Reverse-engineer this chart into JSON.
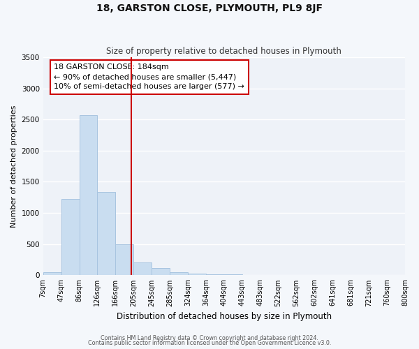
{
  "title": "18, GARSTON CLOSE, PLYMOUTH, PL9 8JF",
  "subtitle": "Size of property relative to detached houses in Plymouth",
  "xlabel": "Distribution of detached houses by size in Plymouth",
  "ylabel": "Number of detached properties",
  "bin_labels": [
    "7sqm",
    "47sqm",
    "86sqm",
    "126sqm",
    "166sqm",
    "205sqm",
    "245sqm",
    "285sqm",
    "324sqm",
    "364sqm",
    "404sqm",
    "443sqm",
    "483sqm",
    "522sqm",
    "562sqm",
    "602sqm",
    "641sqm",
    "681sqm",
    "721sqm",
    "760sqm",
    "800sqm"
  ],
  "bar_values": [
    50,
    1230,
    2570,
    1340,
    500,
    200,
    110,
    50,
    30,
    20,
    10,
    5,
    5,
    0,
    0,
    0,
    0,
    0,
    0,
    0
  ],
  "bar_color": "#c9ddf0",
  "bar_edge_color": "#a8c4e0",
  "vline_x_index": 4.87,
  "vline_label": "18 GARSTON CLOSE: 184sqm",
  "annotation_line1": "← 90% of detached houses are smaller (5,447)",
  "annotation_line2": "10% of semi-detached houses are larger (577) →",
  "annotation_box_color": "#ffffff",
  "annotation_box_edge": "#cc0000",
  "ylim": [
    0,
    3500
  ],
  "bin_width": 1,
  "footer_line1": "Contains HM Land Registry data © Crown copyright and database right 2024.",
  "footer_line2": "Contains public sector information licensed under the Open Government Licence v3.0.",
  "fig_background": "#f4f7fb",
  "plot_background": "#eef2f8",
  "grid_color": "#ffffff",
  "vline_color": "#cc0000",
  "title_fontsize": 10,
  "subtitle_fontsize": 8.5,
  "ylabel_fontsize": 8,
  "xlabel_fontsize": 8.5,
  "tick_fontsize": 7,
  "footer_fontsize": 5.8,
  "annot_fontsize": 8
}
